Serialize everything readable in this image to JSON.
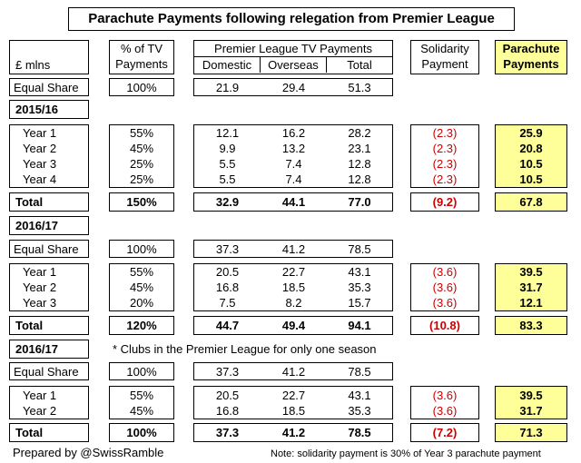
{
  "title": "Parachute Payments following relegation from Premier League",
  "header": {
    "currency": "£ mlns",
    "pct_l1": "% of TV",
    "pct_l2": "Payments",
    "pl_group": "Premier League TV Payments",
    "domestic": "Domestic",
    "overseas": "Overseas",
    "total": "Total",
    "sol_l1": "Solidarity",
    "sol_l2": "Payment",
    "para_l1": "Parachute",
    "para_l2": "Payments"
  },
  "equal_share_1": {
    "label": "Equal Share",
    "pct": "100%",
    "domestic": "21.9",
    "overseas": "29.4",
    "total": "51.3"
  },
  "section1": {
    "title": "2015/16",
    "rows": [
      {
        "label": "Year 1",
        "pct": "55%",
        "domestic": "12.1",
        "overseas": "16.2",
        "total": "28.2",
        "sol": "(2.3)",
        "para": "25.9"
      },
      {
        "label": "Year 2",
        "pct": "45%",
        "domestic": "9.9",
        "overseas": "13.2",
        "total": "23.1",
        "sol": "(2.3)",
        "para": "20.8"
      },
      {
        "label": "Year 3",
        "pct": "25%",
        "domestic": "5.5",
        "overseas": "7.4",
        "total": "12.8",
        "sol": "(2.3)",
        "para": "10.5"
      },
      {
        "label": "Year 4",
        "pct": "25%",
        "domestic": "5.5",
        "overseas": "7.4",
        "total": "12.8",
        "sol": "(2.3)",
        "para": "10.5"
      }
    ],
    "total": {
      "label": "Total",
      "pct": "150%",
      "domestic": "32.9",
      "overseas": "44.1",
      "total": "77.0",
      "sol": "(9.2)",
      "para": "67.8"
    }
  },
  "section2": {
    "title": "2016/17",
    "equal_share": {
      "label": "Equal Share",
      "pct": "100%",
      "domestic": "37.3",
      "overseas": "41.2",
      "total": "78.5"
    },
    "rows": [
      {
        "label": "Year 1",
        "pct": "55%",
        "domestic": "20.5",
        "overseas": "22.7",
        "total": "43.1",
        "sol": "(3.6)",
        "para": "39.5"
      },
      {
        "label": "Year 2",
        "pct": "45%",
        "domestic": "16.8",
        "overseas": "18.5",
        "total": "35.3",
        "sol": "(3.6)",
        "para": "31.7"
      },
      {
        "label": "Year 3",
        "pct": "20%",
        "domestic": "7.5",
        "overseas": "8.2",
        "total": "15.7",
        "sol": "(3.6)",
        "para": "12.1"
      }
    ],
    "total": {
      "label": "Total",
      "pct": "120%",
      "domestic": "44.7",
      "overseas": "49.4",
      "total": "94.1",
      "sol": "(10.8)",
      "para": "83.3"
    }
  },
  "section3": {
    "title": "2016/17",
    "subtitle": "* Clubs in the Premier League for only one season",
    "equal_share": {
      "label": "Equal Share",
      "pct": "100%",
      "domestic": "37.3",
      "overseas": "41.2",
      "total": "78.5"
    },
    "rows": [
      {
        "label": "Year 1",
        "pct": "55%",
        "domestic": "20.5",
        "overseas": "22.7",
        "total": "43.1",
        "sol": "(3.6)",
        "para": "39.5"
      },
      {
        "label": "Year 2",
        "pct": "45%",
        "domestic": "16.8",
        "overseas": "18.5",
        "total": "35.3",
        "sol": "(3.6)",
        "para": "31.7"
      }
    ],
    "total": {
      "label": "Total",
      "pct": "100%",
      "domestic": "37.3",
      "overseas": "41.2",
      "total": "78.5",
      "sol": "(7.2)",
      "para": "71.3"
    }
  },
  "footer": {
    "credit": "Prepared by @SwissRamble",
    "note": "Note: solidarity payment is 30% of Year 3 parachute payment"
  }
}
